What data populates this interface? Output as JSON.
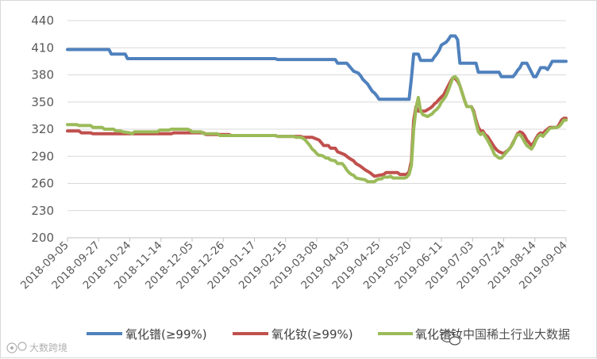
{
  "chart_data": {
    "type": "line",
    "title": "",
    "xlabel": "",
    "ylabel": "",
    "ylim": [
      200,
      440
    ],
    "yticks": [
      200,
      230,
      260,
      290,
      320,
      350,
      380,
      410,
      440
    ],
    "xtick_labels": [
      "2018-09-05",
      "2018-09-27",
      "2018-10-24",
      "2018-11-14",
      "2018-12-05",
      "2018-12-26",
      "2019-01-17",
      "2019-02-15",
      "2019-03-08",
      "2019-04-03",
      "2019-04-25",
      "2019-05-20",
      "2019-06-11",
      "2019-07-03",
      "2019-07-24",
      "2019-08-14",
      "2019-09-04"
    ],
    "grid": "horizontal",
    "legend_position": "bottom",
    "series": [
      {
        "name": "氧化镨(≥99%)",
        "color": "#4f81bd",
        "points": [
          [
            0,
            408
          ],
          [
            18,
            408
          ],
          [
            19,
            403
          ],
          [
            25,
            403
          ],
          [
            26,
            398
          ],
          [
            90,
            398
          ],
          [
            91,
            397
          ],
          [
            116,
            397
          ],
          [
            117,
            393
          ],
          [
            121,
            393
          ],
          [
            122,
            390
          ],
          [
            123,
            387
          ],
          [
            124,
            384
          ],
          [
            126,
            382
          ],
          [
            127,
            379
          ],
          [
            128,
            375
          ],
          [
            130,
            370
          ],
          [
            131,
            366
          ],
          [
            132,
            362
          ],
          [
            133,
            360
          ],
          [
            134,
            357
          ],
          [
            135,
            353
          ],
          [
            148,
            353
          ],
          [
            149,
            376
          ],
          [
            150,
            403
          ],
          [
            152,
            403
          ],
          [
            153,
            396
          ],
          [
            158,
            396
          ],
          [
            159,
            400
          ],
          [
            160,
            403
          ],
          [
            161,
            407
          ],
          [
            162,
            413
          ],
          [
            164,
            416
          ],
          [
            165,
            419
          ],
          [
            166,
            423
          ],
          [
            168,
            423
          ],
          [
            169,
            419
          ],
          [
            170,
            393
          ],
          [
            177,
            393
          ],
          [
            178,
            383
          ],
          [
            187,
            383
          ],
          [
            188,
            378
          ],
          [
            193,
            378
          ],
          [
            194,
            381
          ],
          [
            195,
            385
          ],
          [
            196,
            388
          ],
          [
            197,
            393
          ],
          [
            199,
            393
          ],
          [
            200,
            388
          ],
          [
            201,
            383
          ],
          [
            202,
            378
          ],
          [
            203,
            378
          ],
          [
            204,
            383
          ],
          [
            205,
            388
          ],
          [
            207,
            388
          ],
          [
            208,
            386
          ],
          [
            209,
            390
          ],
          [
            210,
            395
          ],
          [
            216,
            395
          ]
        ]
      },
      {
        "name": "氧化钕(≥99%)",
        "color": "#c0504d",
        "points": [
          [
            0,
            318
          ],
          [
            5,
            318
          ],
          [
            6,
            316
          ],
          [
            10,
            316
          ],
          [
            11,
            315
          ],
          [
            45,
            315
          ],
          [
            46,
            316
          ],
          [
            59,
            316
          ],
          [
            60,
            314
          ],
          [
            70,
            314
          ],
          [
            71,
            313
          ],
          [
            90,
            313
          ],
          [
            91,
            312
          ],
          [
            101,
            312
          ],
          [
            102,
            311
          ],
          [
            106,
            311
          ],
          [
            107,
            310
          ],
          [
            109,
            308
          ],
          [
            110,
            305
          ],
          [
            111,
            302
          ],
          [
            113,
            302
          ],
          [
            114,
            299
          ],
          [
            116,
            299
          ],
          [
            117,
            295
          ],
          [
            120,
            292
          ],
          [
            122,
            288
          ],
          [
            124,
            285
          ],
          [
            125,
            282
          ],
          [
            127,
            279
          ],
          [
            129,
            275
          ],
          [
            131,
            272
          ],
          [
            133,
            268
          ],
          [
            135,
            269
          ],
          [
            137,
            270
          ],
          [
            138,
            272
          ],
          [
            143,
            272
          ],
          [
            144,
            270
          ],
          [
            147,
            270
          ],
          [
            148,
            273
          ],
          [
            149,
            285
          ],
          [
            150,
            330
          ],
          [
            151,
            345
          ],
          [
            152,
            340
          ],
          [
            155,
            340
          ],
          [
            157,
            343
          ],
          [
            158,
            345
          ],
          [
            159,
            348
          ],
          [
            160,
            350
          ],
          [
            161,
            353
          ],
          [
            163,
            358
          ],
          [
            164,
            363
          ],
          [
            165,
            368
          ],
          [
            166,
            373
          ],
          [
            167,
            377
          ],
          [
            168,
            376
          ],
          [
            169,
            373
          ],
          [
            170,
            368
          ],
          [
            171,
            360
          ],
          [
            172,
            352
          ],
          [
            173,
            345
          ],
          [
            175,
            345
          ],
          [
            176,
            340
          ],
          [
            177,
            330
          ],
          [
            178,
            322
          ],
          [
            179,
            318
          ],
          [
            180,
            318
          ],
          [
            181,
            314
          ],
          [
            182,
            312
          ],
          [
            183,
            308
          ],
          [
            184,
            304
          ],
          [
            185,
            300
          ],
          [
            186,
            297
          ],
          [
            187,
            295
          ],
          [
            189,
            293
          ],
          [
            190,
            295
          ],
          [
            191,
            297
          ],
          [
            192,
            300
          ],
          [
            193,
            305
          ],
          [
            194,
            310
          ],
          [
            195,
            315
          ],
          [
            196,
            317
          ],
          [
            197,
            316
          ],
          [
            198,
            313
          ],
          [
            199,
            308
          ],
          [
            200,
            305
          ],
          [
            201,
            302
          ],
          [
            202,
            305
          ],
          [
            203,
            310
          ],
          [
            204,
            314
          ],
          [
            205,
            316
          ],
          [
            206,
            315
          ],
          [
            207,
            318
          ],
          [
            208,
            320
          ],
          [
            209,
            322
          ],
          [
            212,
            322
          ],
          [
            213,
            325
          ],
          [
            214,
            330
          ],
          [
            215,
            332
          ],
          [
            216,
            332
          ]
        ]
      },
      {
        "name": "氧化镨钕",
        "color": "#9bbb59",
        "points": [
          [
            0,
            325
          ],
          [
            4,
            325
          ],
          [
            5,
            324
          ],
          [
            10,
            324
          ],
          [
            11,
            322
          ],
          [
            15,
            322
          ],
          [
            16,
            320
          ],
          [
            20,
            320
          ],
          [
            21,
            318
          ],
          [
            23,
            318
          ],
          [
            24,
            317
          ],
          [
            27,
            316
          ],
          [
            28,
            315
          ],
          [
            29,
            317
          ],
          [
            30,
            317
          ],
          [
            39,
            317
          ],
          [
            40,
            319
          ],
          [
            44,
            319
          ],
          [
            45,
            320
          ],
          [
            52,
            320
          ],
          [
            53,
            319
          ],
          [
            54,
            317
          ],
          [
            58,
            317
          ],
          [
            59,
            315
          ],
          [
            65,
            315
          ],
          [
            66,
            313
          ],
          [
            90,
            313
          ],
          [
            91,
            312
          ],
          [
            98,
            312
          ],
          [
            99,
            311
          ],
          [
            101,
            311
          ],
          [
            102,
            310
          ],
          [
            103,
            308
          ],
          [
            104,
            305
          ],
          [
            105,
            302
          ],
          [
            106,
            298
          ],
          [
            107,
            296
          ],
          [
            108,
            293
          ],
          [
            109,
            291
          ],
          [
            110,
            291
          ],
          [
            111,
            290
          ],
          [
            112,
            288
          ],
          [
            113,
            288
          ],
          [
            114,
            286
          ],
          [
            116,
            285
          ],
          [
            117,
            282
          ],
          [
            119,
            282
          ],
          [
            120,
            279
          ],
          [
            121,
            275
          ],
          [
            122,
            272
          ],
          [
            123,
            270
          ],
          [
            124,
            269
          ],
          [
            125,
            266
          ],
          [
            127,
            265
          ],
          [
            129,
            264
          ],
          [
            130,
            262
          ],
          [
            131,
            262
          ],
          [
            133,
            262
          ],
          [
            134,
            264
          ],
          [
            135,
            265
          ],
          [
            136,
            265
          ],
          [
            137,
            267
          ],
          [
            139,
            267
          ],
          [
            140,
            268
          ],
          [
            141,
            266
          ],
          [
            146,
            266
          ],
          [
            147,
            267
          ],
          [
            148,
            270
          ],
          [
            149,
            280
          ],
          [
            150,
            320
          ],
          [
            151,
            343
          ],
          [
            152,
            355
          ],
          [
            153,
            340
          ],
          [
            154,
            336
          ],
          [
            156,
            334
          ],
          [
            158,
            337
          ],
          [
            159,
            340
          ],
          [
            160,
            342
          ],
          [
            161,
            345
          ],
          [
            162,
            350
          ],
          [
            163,
            353
          ],
          [
            164,
            357
          ],
          [
            165,
            363
          ],
          [
            166,
            370
          ],
          [
            167,
            377
          ],
          [
            168,
            378
          ],
          [
            169,
            375
          ],
          [
            170,
            368
          ],
          [
            171,
            360
          ],
          [
            172,
            352
          ],
          [
            173,
            345
          ],
          [
            175,
            345
          ],
          [
            176,
            338
          ],
          [
            177,
            327
          ],
          [
            178,
            317
          ],
          [
            179,
            314
          ],
          [
            180,
            316
          ],
          [
            181,
            312
          ],
          [
            182,
            308
          ],
          [
            183,
            303
          ],
          [
            184,
            298
          ],
          [
            185,
            292
          ],
          [
            186,
            290
          ],
          [
            187,
            288
          ],
          [
            188,
            288
          ],
          [
            189,
            291
          ],
          [
            190,
            294
          ],
          [
            191,
            297
          ],
          [
            192,
            300
          ],
          [
            193,
            304
          ],
          [
            194,
            310
          ],
          [
            195,
            314
          ],
          [
            196,
            314
          ],
          [
            197,
            311
          ],
          [
            198,
            306
          ],
          [
            199,
            302
          ],
          [
            200,
            300
          ],
          [
            201,
            298
          ],
          [
            202,
            302
          ],
          [
            203,
            308
          ],
          [
            204,
            312
          ],
          [
            205,
            314
          ],
          [
            206,
            312
          ],
          [
            207,
            315
          ],
          [
            208,
            318
          ],
          [
            209,
            321
          ],
          [
            212,
            322
          ],
          [
            213,
            323
          ],
          [
            214,
            326
          ],
          [
            215,
            330
          ],
          [
            216,
            330
          ]
        ]
      }
    ]
  },
  "watermark": {
    "left_text": "大数跨境",
    "right_text": "中国稀土行业大数据"
  }
}
